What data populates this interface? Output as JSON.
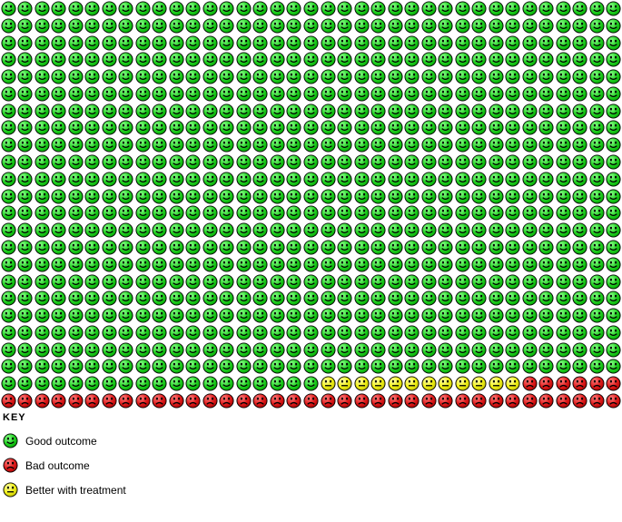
{
  "chart_data": {
    "type": "pictogram",
    "title": "",
    "grid": {
      "rows": 24,
      "cols": 37
    },
    "total_faces": 888,
    "categories": [
      "Good outcome",
      "Bad outcome",
      "Better with treatment"
    ],
    "values": [
      833,
      43,
      12
    ],
    "runs": [
      {
        "face": "good",
        "count": 833
      },
      {
        "face": "better",
        "count": 12
      },
      {
        "face": "bad",
        "count": 43
      }
    ],
    "fill_order": "left-to-right, top-to-bottom",
    "legend_position": "bottom-left",
    "colors": {
      "good": "#22cc22",
      "bad": "#dd1515",
      "better": "#eded12",
      "outline": "#000000"
    }
  },
  "key": {
    "title": "KEY",
    "items": [
      {
        "face": "good",
        "label": "Good outcome",
        "color": "#22cc22"
      },
      {
        "face": "bad",
        "label": "Bad outcome",
        "color": "#dd1515"
      },
      {
        "face": "better",
        "label": "Better with treatment",
        "color": "#eded12"
      }
    ]
  }
}
